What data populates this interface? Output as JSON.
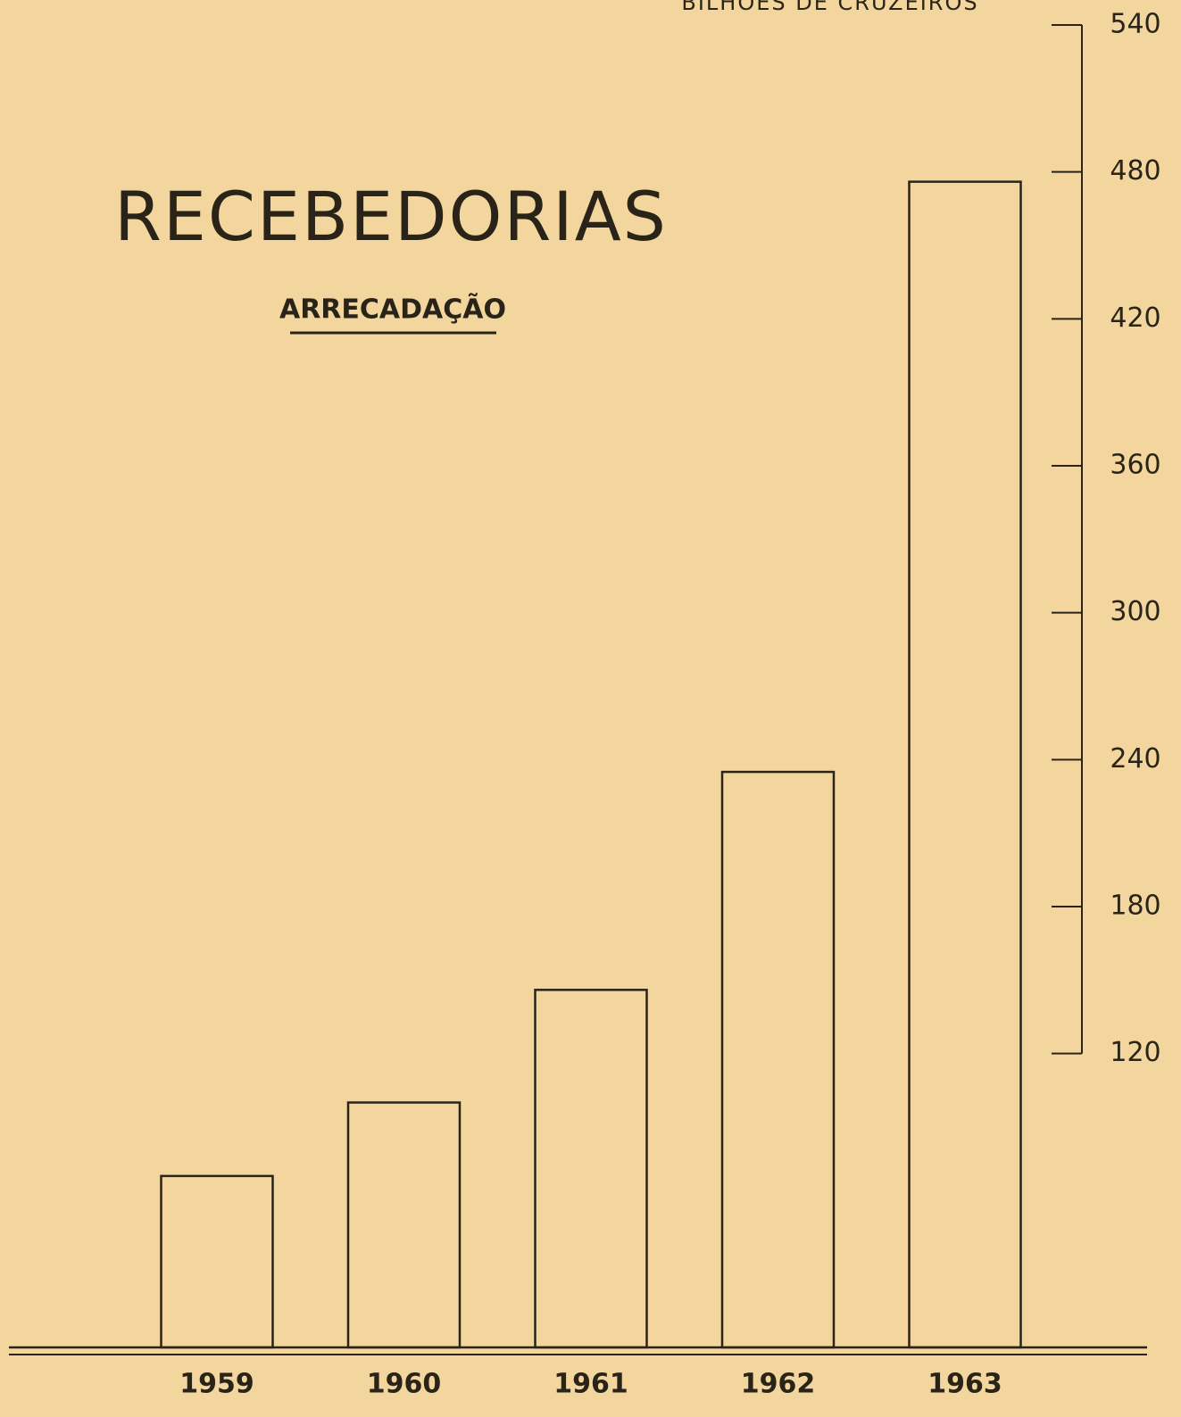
{
  "chart_data": {
    "type": "bar",
    "title": "RECEBEDORIAS",
    "subtitle": "ARRECADAÇÃO",
    "y_axis_label": "BILHÕES DE CRUZEIROS",
    "categories": [
      "1959",
      "1960",
      "1961",
      "1962",
      "1963"
    ],
    "values": [
      70,
      100,
      146,
      235,
      476
    ],
    "color": "#2a2418",
    "ylim": [
      0,
      540
    ],
    "yticks": [
      120,
      180,
      240,
      300,
      360,
      420,
      480,
      540
    ],
    "grid": false
  }
}
